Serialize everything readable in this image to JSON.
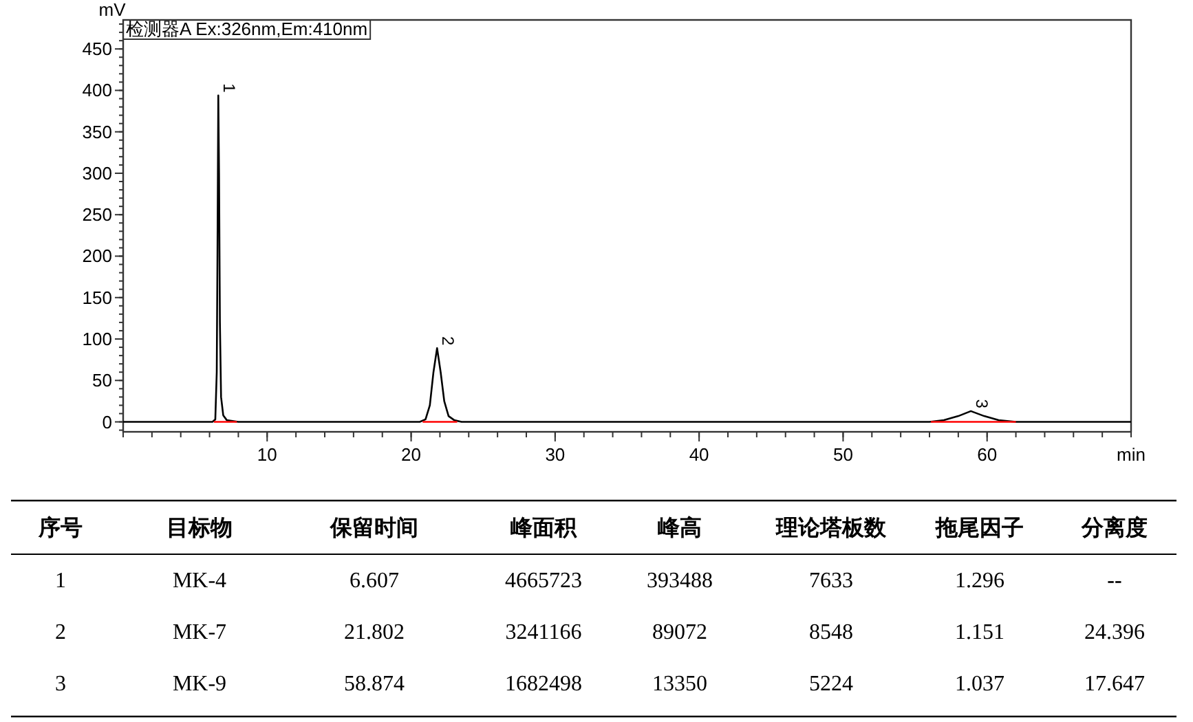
{
  "chart_data": [
    {
      "type": "line",
      "title": "检测器A Ex:326nm,Em:410nm",
      "xlabel": "min",
      "ylabel": "mV",
      "xlim": [
        0,
        70
      ],
      "ylim": [
        -12,
        485
      ],
      "xticks": [
        10,
        20,
        30,
        40,
        50,
        60
      ],
      "yticks": [
        0,
        50,
        100,
        150,
        200,
        250,
        300,
        350,
        400,
        450
      ],
      "marker": "none",
      "line_style": "solid",
      "series": [
        {
          "color": "#000000",
          "x": [
            0,
            6.2,
            6.4,
            6.5,
            6.55,
            6.607,
            6.66,
            6.72,
            6.8,
            6.95,
            7.2,
            7.6,
            8.0,
            20.6,
            21.0,
            21.3,
            21.55,
            21.802,
            22.05,
            22.3,
            22.6,
            23.0,
            23.5,
            56.0,
            57.0,
            58.0,
            58.874,
            59.8,
            60.8,
            62.0,
            63.0,
            70.0
          ],
          "values": [
            0,
            0,
            3,
            60,
            200,
            394,
            300,
            120,
            30,
            8,
            2,
            1,
            0,
            0,
            3,
            20,
            60,
            89,
            60,
            25,
            7,
            2,
            0,
            0,
            2,
            7,
            13,
            7,
            2,
            0,
            0,
            0
          ]
        },
        {
          "color": "#ff0000",
          "x": [
            6.3,
            7.9
          ],
          "values": [
            0,
            0
          ]
        },
        {
          "color": "#ff0000",
          "x": [
            20.8,
            23.2
          ],
          "values": [
            0,
            0
          ]
        },
        {
          "color": "#ff0000",
          "x": [
            56.1,
            62.0
          ],
          "values": [
            0,
            0
          ]
        }
      ],
      "annotations": [
        {
          "text": "1",
          "x": 6.607,
          "y": 394
        },
        {
          "text": "2",
          "x": 21.802,
          "y": 89
        },
        {
          "text": "3",
          "x": 58.874,
          "y": 13
        }
      ]
    },
    {
      "type": "other",
      "categories": [
        "序号",
        "目标物",
        "保留时间",
        "峰面积",
        "峰高",
        "理论塔板数",
        "拖尾因子",
        "分离度"
      ],
      "cell_labels": [
        [
          "1",
          "MK-4",
          "6.607",
          "4665723",
          "393488",
          "7633",
          "1.296",
          "--"
        ],
        [
          "2",
          "MK-7",
          "21.802",
          "3241166",
          "89072",
          "8548",
          "1.151",
          "24.396"
        ],
        [
          "3",
          "MK-9",
          "58.874",
          "1682498",
          "13350",
          "5224",
          "1.037",
          "17.647"
        ]
      ]
    }
  ]
}
